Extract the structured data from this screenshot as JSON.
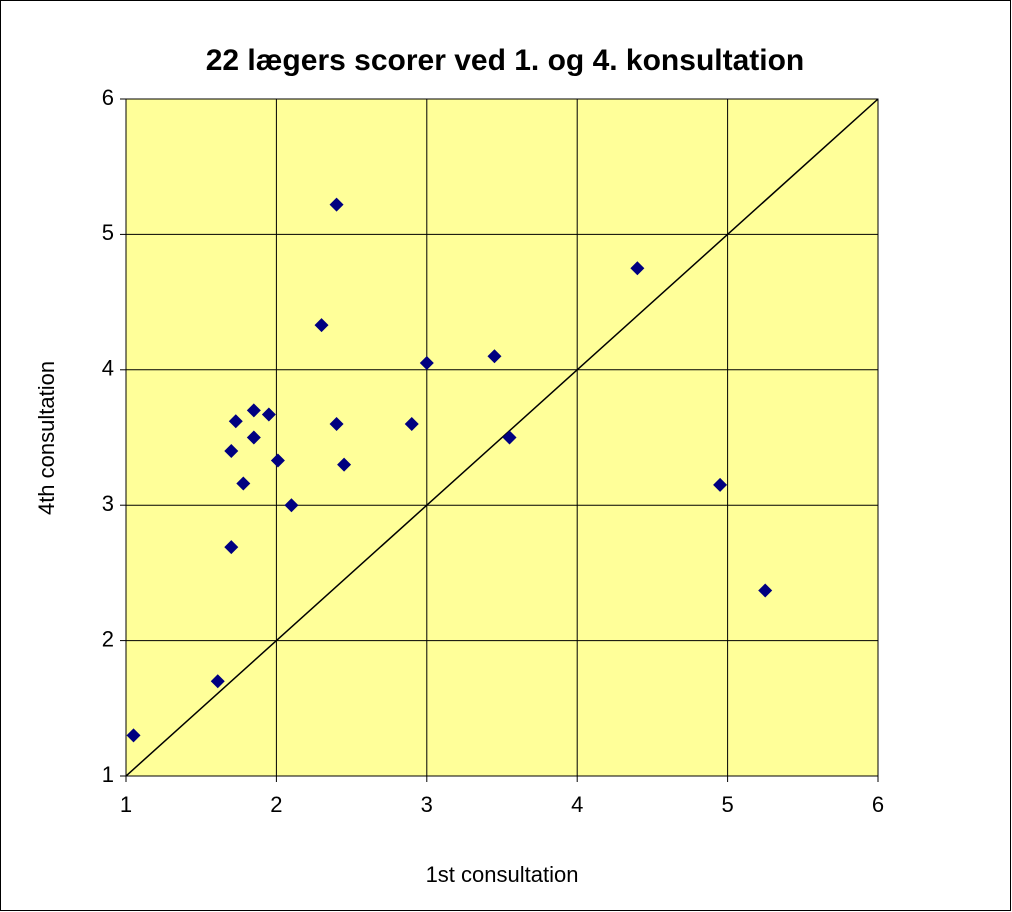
{
  "chart_data": {
    "type": "scatter",
    "title": "22 lægers scorer ved 1. og 4. konsultation",
    "xlabel": "1st consultation",
    "ylabel": "4th consultation",
    "xlim": [
      1,
      6
    ],
    "ylim": [
      1,
      6
    ],
    "xticks": [
      1,
      2,
      3,
      4,
      5,
      6
    ],
    "yticks": [
      1,
      2,
      3,
      4,
      5,
      6
    ],
    "grid": true,
    "background": "#ffff99",
    "series": [
      {
        "color": "#000080",
        "x": [
          1.05,
          1.61,
          1.7,
          1.7,
          1.73,
          1.78,
          1.85,
          1.85,
          1.95,
          2.01,
          2.1,
          2.3,
          2.4,
          2.4,
          2.45,
          2.9,
          3.0,
          3.45,
          3.55,
          4.4,
          4.95,
          5.25
        ],
        "values": [
          1.3,
          1.7,
          2.69,
          3.4,
          3.62,
          3.16,
          3.7,
          3.5,
          3.67,
          3.33,
          3.0,
          4.33,
          5.22,
          3.6,
          3.3,
          3.6,
          4.05,
          4.1,
          3.5,
          4.75,
          3.15,
          2.37
        ]
      }
    ],
    "reference_line": {
      "x": [
        1,
        6
      ],
      "values": [
        1,
        6
      ],
      "color": "#000000"
    }
  }
}
